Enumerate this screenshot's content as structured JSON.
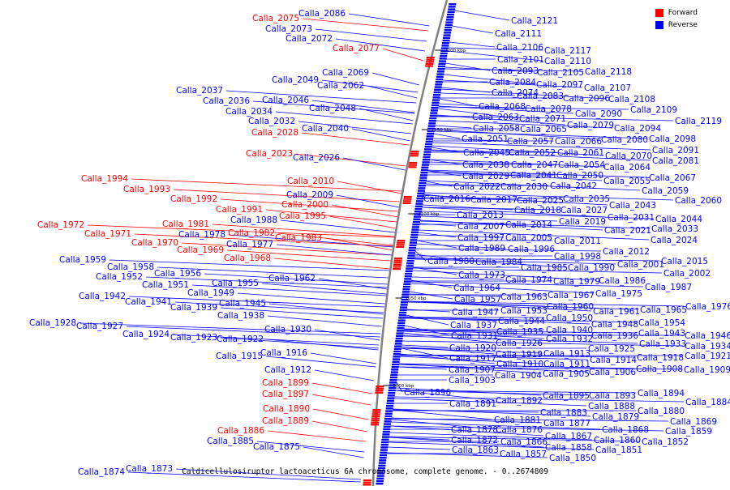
{
  "title": "Caldicellulosiruptor lactoaceticus 6A chromosome, complete genome. - 0..2674809",
  "legend": [
    {
      "label": "Forward",
      "color": "#ff0000"
    },
    {
      "label": "Reverse",
      "color": "#0000ff"
    }
  ],
  "ticks": [
    "2200 kbp",
    "2150 kbp",
    "2100 kbp",
    "2050 kbp",
    "2000 kbp"
  ],
  "colors": {
    "forward": "#ff0000",
    "reverse": "#0000ff",
    "backbone": "#808080"
  },
  "left_labels": [
    {
      "t": "Calla_2086",
      "s": "r"
    },
    {
      "t": "Calla_2075",
      "s": "f"
    },
    {
      "t": "Calla_2073",
      "s": "r"
    },
    {
      "t": "Calla_2072",
      "s": "r"
    },
    {
      "t": "Calla_2077",
      "s": "f"
    },
    {
      "t": "Calla_2069",
      "s": "r"
    },
    {
      "t": "Calla_2049",
      "s": "r"
    },
    {
      "t": "Calla_2062",
      "s": "r"
    },
    {
      "t": "Calla_2037",
      "s": "r"
    },
    {
      "t": "Calla_2046",
      "s": "r"
    },
    {
      "t": "Calla_2036",
      "s": "r"
    },
    {
      "t": "Calla_2048",
      "s": "r"
    },
    {
      "t": "Calla_2034",
      "s": "r"
    },
    {
      "t": "Calla_2032",
      "s": "r"
    },
    {
      "t": "Calla_2040",
      "s": "r"
    },
    {
      "t": "Calla_2028",
      "s": "f"
    },
    {
      "t": "Calla_2023",
      "s": "f"
    },
    {
      "t": "Calla_2026",
      "s": "r"
    },
    {
      "t": "Calla_1994",
      "s": "f"
    },
    {
      "t": "Calla_2010",
      "s": "f"
    },
    {
      "t": "Calla_1993",
      "s": "f"
    },
    {
      "t": "Calla_2009",
      "s": "r"
    },
    {
      "t": "Calla_1992",
      "s": "f"
    },
    {
      "t": "Calla_2000",
      "s": "f"
    },
    {
      "t": "Calla_1991",
      "s": "f"
    },
    {
      "t": "Calla_1995",
      "s": "f"
    },
    {
      "t": "Calla_1988",
      "s": "r"
    },
    {
      "t": "Calla_1972",
      "s": "f"
    },
    {
      "t": "Calla_1981",
      "s": "f"
    },
    {
      "t": "Calla_1971",
      "s": "f"
    },
    {
      "t": "Calla_1982",
      "s": "f"
    },
    {
      "t": "Calla_1978",
      "s": "r"
    },
    {
      "t": "Calla_1983",
      "s": "f"
    },
    {
      "t": "Calla_1970",
      "s": "f"
    },
    {
      "t": "Calla_1977",
      "s": "r"
    },
    {
      "t": "Calla_1969",
      "s": "f"
    },
    {
      "t": "Calla_1968",
      "s": "f"
    },
    {
      "t": "Calla_1959",
      "s": "r"
    },
    {
      "t": "Calla_1958",
      "s": "r"
    },
    {
      "t": "Calla_1956",
      "s": "r"
    },
    {
      "t": "Calla_1952",
      "s": "r"
    },
    {
      "t": "Calla_1962",
      "s": "r"
    },
    {
      "t": "Calla_1951",
      "s": "r"
    },
    {
      "t": "Calla_1955",
      "s": "r"
    },
    {
      "t": "Calla_1949",
      "s": "r"
    },
    {
      "t": "Calla_1942",
      "s": "r"
    },
    {
      "t": "Calla_1941",
      "s": "r"
    },
    {
      "t": "Calla_1945",
      "s": "r"
    },
    {
      "t": "Calla_1939",
      "s": "r"
    },
    {
      "t": "Calla_1938",
      "s": "r"
    },
    {
      "t": "Calla_1928",
      "s": "r"
    },
    {
      "t": "Calla_1927",
      "s": "r"
    },
    {
      "t": "Calla_1930",
      "s": "r"
    },
    {
      "t": "Calla_1924",
      "s": "r"
    },
    {
      "t": "Calla_1923",
      "s": "r"
    },
    {
      "t": "Calla_1922",
      "s": "r"
    },
    {
      "t": "Calla_1916",
      "s": "r"
    },
    {
      "t": "Calla_1915",
      "s": "r"
    },
    {
      "t": "Calla_1912",
      "s": "r"
    },
    {
      "t": "Calla_1899",
      "s": "f"
    },
    {
      "t": "Calla_1897",
      "s": "f"
    },
    {
      "t": "Calla_1890",
      "s": "f"
    },
    {
      "t": "Calla_1889",
      "s": "f"
    },
    {
      "t": "Calla_1886",
      "s": "f"
    },
    {
      "t": "Calla_1885",
      "s": "r"
    },
    {
      "t": "Calla_1875",
      "s": "r"
    },
    {
      "t": "Calla_1874",
      "s": "r"
    },
    {
      "t": "Calla_1873",
      "s": "r"
    }
  ],
  "right_labels": [
    "Calla_2121",
    "Calla_2111",
    "Calla_2106",
    "Calla_2117",
    "Calla_2101",
    "Calla_2110",
    "Calla_2093",
    "Calla_2105",
    "Calla_2118",
    "Calla_2084",
    "Calla_2097",
    "Calla_2107",
    "Calla_2074",
    "Calla_2083",
    "Calla_2096",
    "Calla_2108",
    "Calla_2068",
    "Calla_2078",
    "Calla_2109",
    "Calla_2063",
    "Calla_2071",
    "Calla_2090",
    "Calla_2119",
    "Calla_2058",
    "Calla_2065",
    "Calla_2079",
    "Calla_2094",
    "Calla_2051",
    "Calla_2057",
    "Calla_2066",
    "Calla_2080",
    "Calla_2098",
    "Calla_2045",
    "Calla_2052",
    "Calla_2061",
    "Calla_2070",
    "Calla_2091",
    "Calla_2038",
    "Calla_2047",
    "Calla_2054",
    "Calla_2081",
    "Calla_2064",
    "Calla_2029",
    "Calla_2041",
    "Calla_2050",
    "Calla_2055",
    "Calla_2067",
    "Calla_2022",
    "Calla_2030",
    "Calla_2042",
    "Calla_2059",
    "Calla_2016",
    "Calla_2017",
    "Calla_2025",
    "Calla_2035",
    "Calla_2043",
    "Calla_2060",
    "Calla_2018",
    "Calla_2027",
    "Calla_2013",
    "Calla_2031",
    "Calla_2044",
    "Calla_2019",
    "Calla_2007",
    "Calla_2014",
    "Calla_2021",
    "Calla_2033",
    "Calla_1997",
    "Calla_2005",
    "Calla_2011",
    "Calla_2024",
    "Calla_1989",
    "Calla_1996",
    "Calla_2012",
    "Calla_1998",
    "Calla_1980",
    "Calla_1984",
    "Calla_2001",
    "Calla_2015",
    "Calla_1985",
    "Calla_1990",
    "Calla_1973",
    "Calla_2002",
    "Calla_1974",
    "Calla_1979",
    "Calla_1986",
    "Calla_1964",
    "Calla_1987",
    "Calla_1963",
    "Calla_1967",
    "Calla_1975",
    "Calla_1957",
    "Calla_1960",
    "Calla_1947",
    "Calla_1953",
    "Calla_1961",
    "Calla_1965",
    "Calla_1976",
    "Calla_1944",
    "Calla_1950",
    "Calla_1937",
    "Calla_1948",
    "Calla_1954",
    "Calla_1935",
    "Calla_1940",
    "Calla_1931",
    "Calla_1932",
    "Calla_1936",
    "Calla_1943",
    "Calla_1946",
    "Calla_1926",
    "Calla_1933",
    "Calla_1934",
    "Calla_1920",
    "Calla_1925",
    "Calla_1917",
    "Calla_1919",
    "Calla_1913",
    "Calla_1918",
    "Calla_1921",
    "Calla_1910",
    "Calla_1911",
    "Calla_1914",
    "Calla_1907",
    "Calla_1904",
    "Calla_1905",
    "Calla_1906",
    "Calla_1908",
    "Calla_1909",
    "Calla_1903",
    "Calla_1896",
    "Calla_1895",
    "Calla_1893",
    "Calla_1894",
    "Calla_1891",
    "Calla_1892",
    "Calla_1888",
    "Calla_1884",
    "Calla_1883",
    "Calla_1880",
    "Calla_1881",
    "Calla_1879",
    "Calla_1877",
    "Calla_1869",
    "Calla_1878",
    "Calla_1876",
    "Calla_1868",
    "Calla_1859",
    "Calla_1872",
    "Calla_1866",
    "Calla_1867",
    "Calla_1860",
    "Calla_1852",
    "Calla_1863",
    "Calla_1857",
    "Calla_1858",
    "Calla_1851",
    "Calla_1850"
  ]
}
